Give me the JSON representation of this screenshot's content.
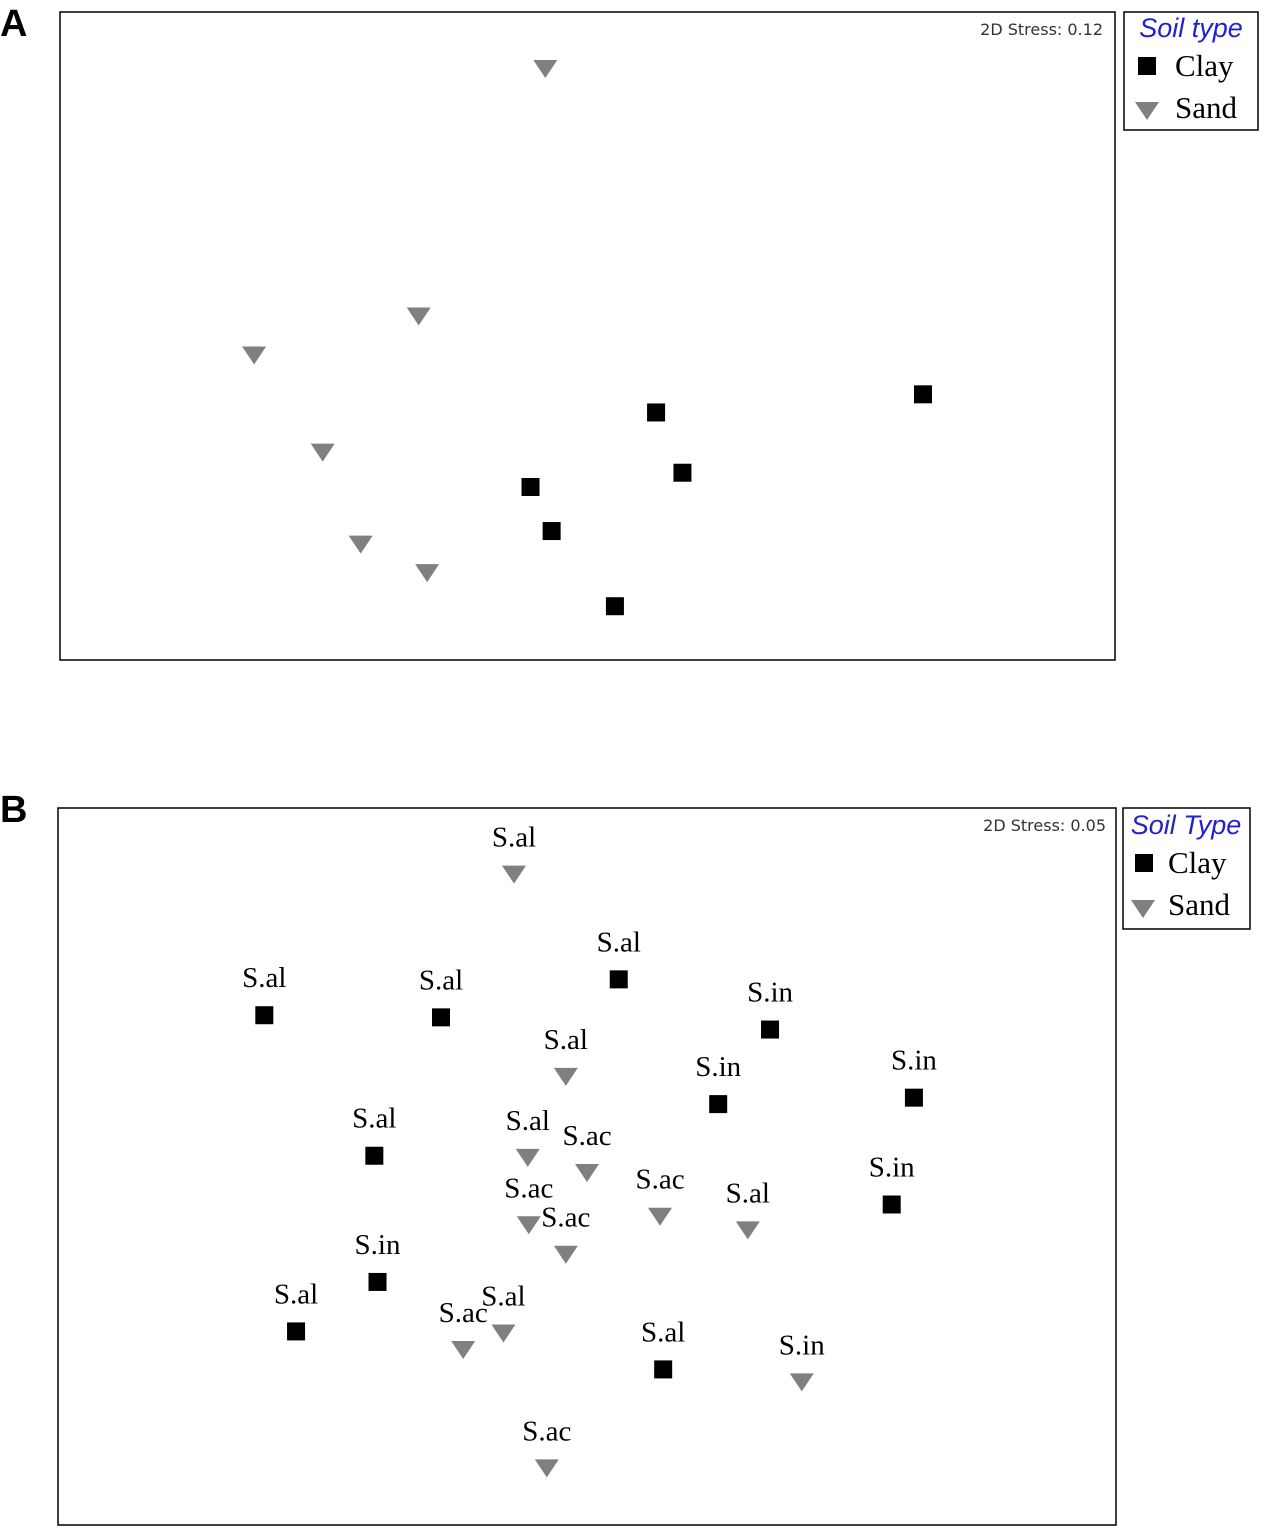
{
  "colors": {
    "clay": "#000000",
    "sand": "#808080",
    "legend_title": "#2222cc"
  },
  "chart_data": [
    {
      "type": "scatter",
      "panel_label": "A",
      "title": "",
      "xlabel": "",
      "ylabel": "",
      "xlim": [
        0,
        100
      ],
      "ylim": [
        0,
        100
      ],
      "grid": false,
      "stress_text": "2D Stress: 0.12",
      "legend": {
        "title": "Soil type",
        "position": "outside-top-right",
        "entries": [
          "Clay",
          "Sand"
        ]
      },
      "series": [
        {
          "name": "Clay",
          "marker": "square",
          "points": [
            {
              "x": 81.8,
              "y": 41.0,
              "label": ""
            },
            {
              "x": 56.5,
              "y": 38.2,
              "label": ""
            },
            {
              "x": 59.0,
              "y": 28.9,
              "label": ""
            },
            {
              "x": 44.6,
              "y": 26.7,
              "label": ""
            },
            {
              "x": 46.6,
              "y": 19.9,
              "label": ""
            },
            {
              "x": 52.6,
              "y": 8.3,
              "label": ""
            }
          ]
        },
        {
          "name": "Sand",
          "marker": "triangle-down",
          "points": [
            {
              "x": 46.0,
              "y": 91.2,
              "label": ""
            },
            {
              "x": 34.0,
              "y": 53.0,
              "label": ""
            },
            {
              "x": 18.4,
              "y": 47.0,
              "label": ""
            },
            {
              "x": 24.9,
              "y": 32.0,
              "label": ""
            },
            {
              "x": 28.5,
              "y": 17.8,
              "label": ""
            },
            {
              "x": 34.8,
              "y": 13.4,
              "label": ""
            }
          ]
        }
      ]
    },
    {
      "type": "scatter",
      "panel_label": "B",
      "title": "",
      "xlabel": "",
      "ylabel": "",
      "xlim": [
        0,
        100
      ],
      "ylim": [
        0,
        100
      ],
      "grid": false,
      "stress_text": "2D Stress: 0.05",
      "legend": {
        "title": "Soil Type",
        "position": "outside-top-right",
        "entries": [
          "Clay",
          "Sand"
        ]
      },
      "series": [
        {
          "name": "Clay",
          "marker": "square",
          "points": [
            {
              "x": 19.5,
              "y": 71.1,
              "label": "S.al"
            },
            {
              "x": 36.2,
              "y": 70.8,
              "label": "S.al"
            },
            {
              "x": 53.0,
              "y": 76.1,
              "label": "S.al"
            },
            {
              "x": 67.3,
              "y": 69.1,
              "label": "S.in"
            },
            {
              "x": 62.4,
              "y": 58.7,
              "label": "S.in"
            },
            {
              "x": 80.9,
              "y": 59.6,
              "label": "S.in"
            },
            {
              "x": 29.9,
              "y": 51.5,
              "label": "S.al"
            },
            {
              "x": 78.8,
              "y": 44.7,
              "label": "S.in"
            },
            {
              "x": 30.2,
              "y": 33.9,
              "label": "S.in"
            },
            {
              "x": 22.5,
              "y": 27.0,
              "label": "S.al"
            },
            {
              "x": 57.2,
              "y": 21.7,
              "label": "S.al"
            }
          ]
        },
        {
          "name": "Sand",
          "marker": "triangle-down",
          "points": [
            {
              "x": 43.1,
              "y": 90.7,
              "label": "S.al"
            },
            {
              "x": 48.0,
              "y": 62.5,
              "label": "S.al"
            },
            {
              "x": 44.4,
              "y": 51.2,
              "label": "S.al"
            },
            {
              "x": 50.0,
              "y": 49.1,
              "label": "S.ac"
            },
            {
              "x": 44.5,
              "y": 41.8,
              "label": "S.ac"
            },
            {
              "x": 48.0,
              "y": 37.7,
              "label": "S.ac"
            },
            {
              "x": 56.9,
              "y": 43.0,
              "label": "S.ac"
            },
            {
              "x": 65.2,
              "y": 41.1,
              "label": "S.al"
            },
            {
              "x": 42.1,
              "y": 26.7,
              "label": "S.al"
            },
            {
              "x": 38.3,
              "y": 24.4,
              "label": "S.ac"
            },
            {
              "x": 70.3,
              "y": 19.9,
              "label": "S.in"
            },
            {
              "x": 46.2,
              "y": 7.9,
              "label": "S.ac"
            }
          ]
        }
      ]
    }
  ]
}
